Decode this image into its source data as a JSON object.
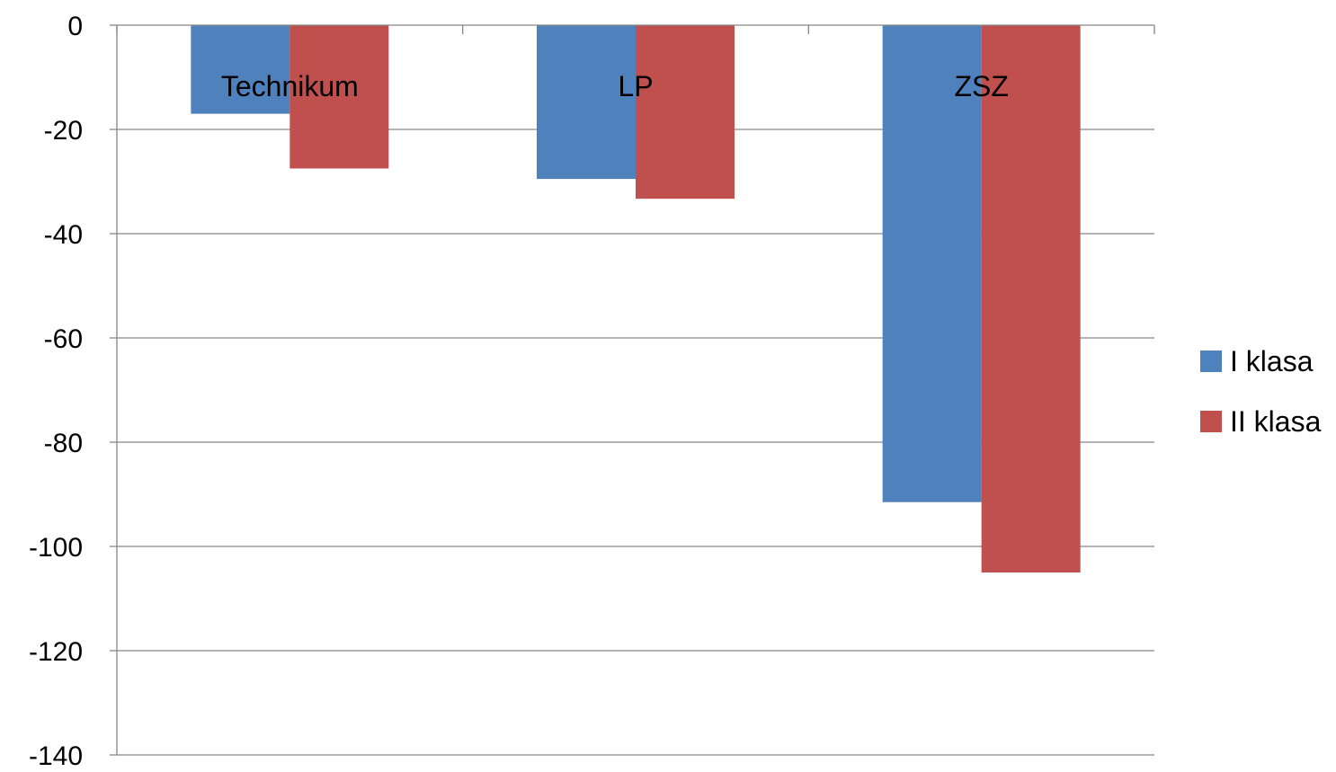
{
  "chart_data": {
    "type": "bar",
    "title": "",
    "xlabel": "",
    "ylabel": "",
    "categories": [
      "Technikum",
      "LP",
      "ZSZ"
    ],
    "series": [
      {
        "name": "I klasa",
        "values": [
          -17,
          -29.5,
          -91.5
        ],
        "color": "#4F81BD"
      },
      {
        "name": "II klasa",
        "values": [
          -27.5,
          -33.3,
          -105
        ],
        "color": "#C0504D"
      }
    ],
    "ylim": [
      -140,
      0
    ],
    "yticks": [
      "0",
      "-20",
      "-40",
      "-60",
      "-80",
      "-100",
      "-120",
      "-140"
    ],
    "grid": true,
    "legend": "right",
    "category_labels_position": "top"
  }
}
